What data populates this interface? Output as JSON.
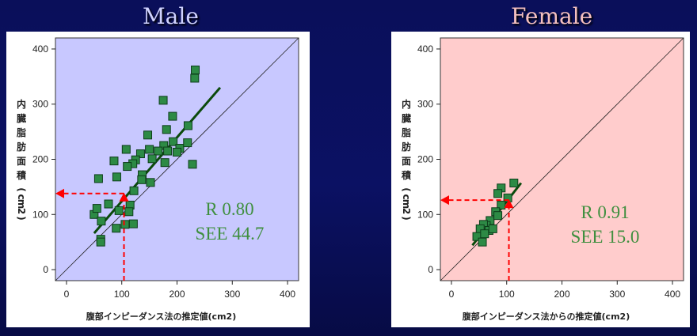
{
  "panels": [
    {
      "title": "Male",
      "stats": {
        "r": "R 0.80",
        "see": "SEE 44.7"
      },
      "bg": "#c8c8ff"
    },
    {
      "title": "Female",
      "stats": {
        "r": "R 0.91",
        "see": "SEE 15.0"
      },
      "bg": "#ffcccc"
    }
  ],
  "chart_data": [
    {
      "type": "scatter",
      "title": "Male",
      "xlabel": "腹部インピーダンス法の推定値(cm2)",
      "ylabel": "内臓脂肪面積(cm2)",
      "xlim": [
        -20,
        420
      ],
      "ylim": [
        -20,
        420
      ],
      "xticks": [
        0,
        100,
        200,
        300,
        400
      ],
      "yticks": [
        0,
        100,
        200,
        300,
        400
      ],
      "series": [
        {
          "values": [
            [
              233,
              362
            ],
            [
              232,
              347
            ],
            [
              175,
              307
            ],
            [
              220,
              261
            ],
            [
              181,
              254
            ],
            [
              192,
              278
            ],
            [
              147,
              244
            ],
            [
              176,
              225
            ],
            [
              193,
              232
            ],
            [
              205,
              220
            ],
            [
              219,
              230
            ],
            [
              183,
              215
            ],
            [
              200,
              213
            ],
            [
              166,
              215
            ],
            [
              108,
              218
            ],
            [
              150,
              218
            ],
            [
              134,
              210
            ],
            [
              155,
              201
            ],
            [
              125,
              199
            ],
            [
              120,
              192
            ],
            [
              86,
              197
            ],
            [
              137,
              172
            ],
            [
              136,
              163
            ],
            [
              110,
              187
            ],
            [
              178,
              194
            ],
            [
              228,
              191
            ],
            [
              58,
              165
            ],
            [
              91,
              168
            ],
            [
              152,
              158
            ],
            [
              122,
              143
            ],
            [
              115,
              117
            ],
            [
              113,
              105
            ],
            [
              76,
              119
            ],
            [
              95,
              107
            ],
            [
              50,
              100
            ],
            [
              55,
              111
            ],
            [
              63,
              88
            ],
            [
              106,
              82
            ],
            [
              121,
              83
            ],
            [
              90,
              75
            ],
            [
              62,
              55
            ],
            [
              62,
              50
            ]
          ]
        }
      ],
      "regression": {
        "from": [
          50,
          66
        ],
        "to": [
          278,
          330
        ]
      },
      "identity_line": true,
      "annotation": {
        "x": 104,
        "y": 138,
        "color": "#ff0000"
      },
      "stats": [
        "R 0.80",
        "SEE 44.7"
      ]
    },
    {
      "type": "scatter",
      "title": "Female",
      "xlabel": "腹部インピーダンス法からの推定値(cm2)",
      "ylabel": "内臓脂肪面積(cm2)",
      "xlim": [
        -20,
        420
      ],
      "ylim": [
        -20,
        420
      ],
      "xticks": [
        0,
        100,
        200,
        300,
        400
      ],
      "yticks": [
        0,
        100,
        200,
        300,
        400
      ],
      "series": [
        {
          "values": [
            [
              113,
              157
            ],
            [
              90,
              148
            ],
            [
              84,
              138
            ],
            [
              102,
              130
            ],
            [
              90,
              117
            ],
            [
              80,
              105
            ],
            [
              70,
              89
            ],
            [
              63,
              80
            ],
            [
              58,
              82
            ],
            [
              52,
              74
            ],
            [
              68,
              71
            ],
            [
              46,
              60
            ],
            [
              56,
              50
            ],
            [
              60,
              65
            ],
            [
              75,
              74
            ],
            [
              84,
              98
            ]
          ]
        }
      ],
      "regression": {
        "from": [
          38,
          44
        ],
        "to": [
          126,
          157
        ]
      },
      "identity_line": true,
      "annotation": {
        "x": 104,
        "y": 126,
        "color": "#ff0000"
      },
      "stats": [
        "R 0.91",
        "SEE 15.0"
      ]
    }
  ]
}
